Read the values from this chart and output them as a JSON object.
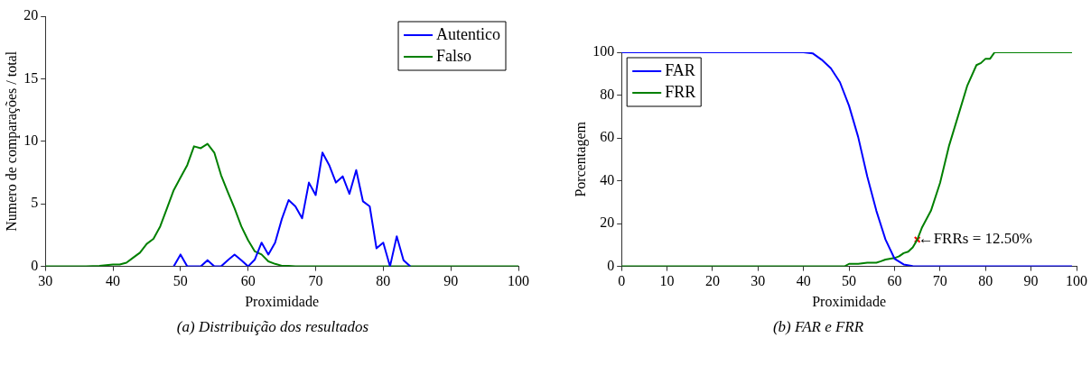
{
  "chart_data": [
    {
      "type": "line",
      "title": "(a) Distribuição dos resultados",
      "xlabel": "Proximidade",
      "ylabel": "Numero de comparações / total",
      "xlim": [
        30,
        100
      ],
      "xticks": [
        30,
        40,
        50,
        60,
        70,
        80,
        90,
        100
      ],
      "ylim": [
        0,
        20
      ],
      "yticks": [
        0,
        5,
        10,
        15,
        20
      ],
      "grid": false,
      "legend": "top right",
      "marker": "none",
      "line_style": "solid",
      "series": [
        {
          "name": "Autentico",
          "color": "#0000ff",
          "x": [
            49,
            50,
            51,
            52,
            53,
            54,
            55,
            56,
            57,
            58,
            59,
            60,
            61,
            62,
            63,
            64,
            65,
            66,
            67,
            68,
            69,
            70,
            71,
            72,
            73,
            74,
            75,
            76,
            77,
            78,
            79,
            80,
            81,
            82,
            83,
            84
          ],
          "values": [
            0,
            0.95,
            0,
            0,
            0,
            0.5,
            0,
            0,
            0.5,
            0.95,
            0.5,
            0,
            0.55,
            1.9,
            0.95,
            1.9,
            3.8,
            5.3,
            4.8,
            3.85,
            6.7,
            5.7,
            9.1,
            8.1,
            6.7,
            7.2,
            5.8,
            7.7,
            5.2,
            4.8,
            1.45,
            1.9,
            0,
            2.4,
            0.5,
            0
          ]
        },
        {
          "name": "Falso",
          "color": "#008000",
          "x": [
            30,
            36,
            38,
            40,
            41,
            42,
            43,
            44,
            45,
            46,
            47,
            48,
            49,
            50,
            51,
            52,
            53,
            54,
            55,
            56,
            57,
            58,
            59,
            60,
            61,
            62,
            63,
            64,
            65,
            66,
            67,
            100
          ],
          "values": [
            0,
            0,
            0.05,
            0.15,
            0.15,
            0.3,
            0.7,
            1.1,
            1.8,
            2.2,
            3.2,
            4.65,
            6.1,
            7.1,
            8.1,
            9.6,
            9.45,
            9.8,
            9.1,
            7.3,
            5.95,
            4.65,
            3.2,
            2.1,
            1.2,
            0.95,
            0.4,
            0.2,
            0.05,
            0.05,
            0,
            0
          ]
        }
      ]
    },
    {
      "type": "line",
      "title": "(b) FAR e FRR",
      "xlabel": "Proximidade",
      "ylabel": "Porcentagem",
      "xlim": [
        0,
        100
      ],
      "xticks": [
        0,
        10,
        20,
        30,
        40,
        50,
        60,
        70,
        80,
        90,
        100
      ],
      "ylim": [
        0,
        100
      ],
      "yticks": [
        0,
        20,
        40,
        60,
        80,
        100
      ],
      "grid": false,
      "legend": "top left",
      "marker": "none",
      "line_style": "solid",
      "annotations": [
        {
          "text": "←FRRs = 12.50%",
          "x": 65,
          "y": 12.5
        }
      ],
      "series": [
        {
          "name": "FAR",
          "color": "#0000ff",
          "x": [
            0,
            40,
            42,
            44,
            46,
            48,
            50,
            52,
            54,
            56,
            58,
            60,
            62,
            64,
            66,
            99
          ],
          "values": [
            100,
            100,
            99.5,
            96.5,
            92.5,
            86,
            75,
            60.5,
            42,
            26,
            12.6,
            3.6,
            0.9,
            0.2,
            0,
            0
          ]
        },
        {
          "name": "FRR",
          "color": "#008000",
          "x": [
            0,
            49,
            50,
            52,
            54,
            56,
            57,
            58,
            60,
            61,
            62,
            63,
            64,
            65,
            66,
            68,
            70,
            72,
            74,
            76,
            78,
            79,
            80,
            81,
            82,
            99
          ],
          "values": [
            0,
            0,
            1.2,
            1.2,
            1.7,
            1.7,
            2.4,
            3.2,
            3.9,
            4.7,
            6.2,
            6.9,
            8.9,
            12.5,
            18,
            26,
            39,
            56.5,
            70.5,
            84.5,
            94,
            95,
            97,
            97,
            100,
            100
          ]
        },
        {
          "type": "scatter",
          "color": "#ff0000",
          "marker": "cross",
          "x": [
            65
          ],
          "values": [
            12.5
          ]
        }
      ]
    }
  ]
}
